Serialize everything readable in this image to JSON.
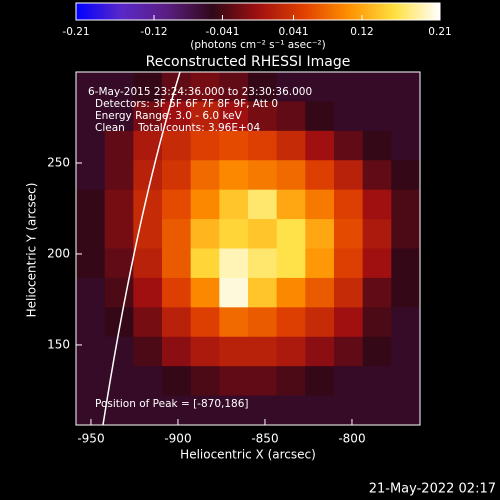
{
  "chart_data": {
    "type": "heatmap",
    "title": "Reconstructed RHESSI Image",
    "colorbar_label": "(photons cm⁻² s⁻¹ asec⁻²)",
    "annotations": [
      "6-May-2015 23:24:36.000 to 23:30:36.000",
      "Detectors: 3F 5F 6F 7F 8F 9F, Att 0",
      "Energy Range: 3.0 - 6.0 keV",
      "Clean    Total counts: 3.96E+04"
    ],
    "peak_label": "Position of Peak = [-870,186]",
    "x_label": "Heliocentric X (arcsec)",
    "y_label": "Heliocentric Y (arcsec)",
    "footer": "21-May-2022 02:17",
    "xlim": [
      -958.6,
      -760.9
    ],
    "xticks": [
      -950,
      -900,
      -850,
      -800
    ],
    "ylim": [
      106,
      300
    ],
    "yticks": [
      150,
      200,
      250
    ],
    "zlim": [
      -0.21,
      0.21
    ],
    "zticks": [
      -0.21,
      -0.12,
      -0.041,
      0.041,
      0.12,
      0.21
    ],
    "colormap": [
      "#0000ff",
      "#5a28c8",
      "#5a1e82",
      "#300818",
      "#a01010",
      "#e04000",
      "#ff9000",
      "#ffe040",
      "#ffffff"
    ],
    "z": [
      [
        -0.06,
        -0.06,
        -0.05,
        -0.03,
        -0.02,
        -0.03,
        -0.05,
        -0.06,
        -0.06,
        -0.06,
        -0.06,
        -0.06
      ],
      [
        -0.06,
        -0.06,
        -0.02,
        0.0,
        0.02,
        0.0,
        -0.02,
        -0.03,
        -0.05,
        -0.06,
        -0.06,
        -0.06
      ],
      [
        -0.06,
        -0.03,
        0.01,
        0.03,
        0.05,
        0.06,
        0.05,
        0.03,
        0.0,
        -0.03,
        -0.05,
        -0.06
      ],
      [
        -0.06,
        -0.03,
        0.02,
        0.04,
        0.08,
        0.1,
        0.09,
        0.08,
        0.05,
        0.02,
        -0.03,
        -0.05
      ],
      [
        -0.05,
        -0.02,
        0.03,
        0.06,
        0.1,
        0.14,
        0.17,
        0.12,
        0.09,
        0.05,
        0.0,
        -0.04
      ],
      [
        -0.05,
        -0.02,
        0.03,
        0.07,
        0.13,
        0.15,
        0.14,
        0.16,
        0.12,
        0.06,
        0.01,
        -0.04
      ],
      [
        -0.05,
        -0.03,
        0.02,
        0.07,
        0.15,
        0.19,
        0.17,
        0.16,
        0.11,
        0.05,
        0.0,
        -0.05
      ],
      [
        -0.06,
        -0.04,
        0.0,
        0.05,
        0.1,
        0.2,
        0.14,
        0.1,
        0.07,
        0.03,
        -0.03,
        -0.05
      ],
      [
        -0.06,
        -0.05,
        -0.02,
        0.02,
        0.05,
        0.08,
        0.07,
        0.05,
        0.03,
        0.0,
        -0.04,
        -0.06
      ],
      [
        -0.06,
        -0.06,
        -0.04,
        -0.01,
        0.01,
        0.02,
        0.02,
        0.01,
        -0.01,
        -0.03,
        -0.05,
        -0.06
      ],
      [
        -0.06,
        -0.06,
        -0.06,
        -0.05,
        -0.04,
        -0.03,
        -0.03,
        -0.04,
        -0.05,
        -0.06,
        -0.06,
        -0.06
      ],
      [
        -0.06,
        -0.06,
        -0.06,
        -0.06,
        -0.06,
        -0.06,
        -0.06,
        -0.06,
        -0.06,
        -0.06,
        -0.06,
        -0.06
      ]
    ]
  }
}
